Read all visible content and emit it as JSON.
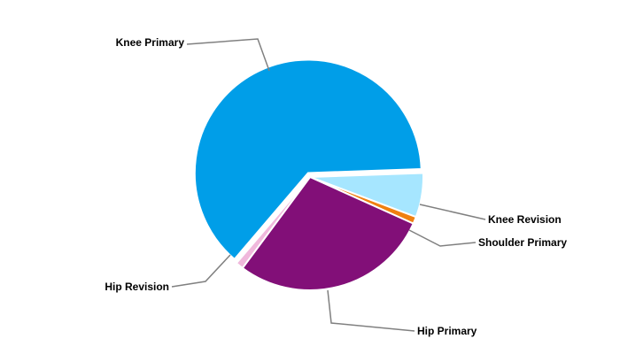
{
  "chart_data": {
    "type": "pie",
    "title": "",
    "slices": [
      {
        "label": "Knee Primary",
        "value": 63.2,
        "color": "#009ee8"
      },
      {
        "label": "Knee Revision",
        "value": 6.3,
        "color": "#a6e6ff"
      },
      {
        "label": "Shoulder Primary",
        "value": 1.0,
        "color": "#f08010"
      },
      {
        "label": "Hip Primary",
        "value": 28.4,
        "color": "#820f78"
      },
      {
        "label": "Hip Revision",
        "value": 1.1,
        "color": "#f0b8dc"
      }
    ],
    "legend": "none"
  }
}
